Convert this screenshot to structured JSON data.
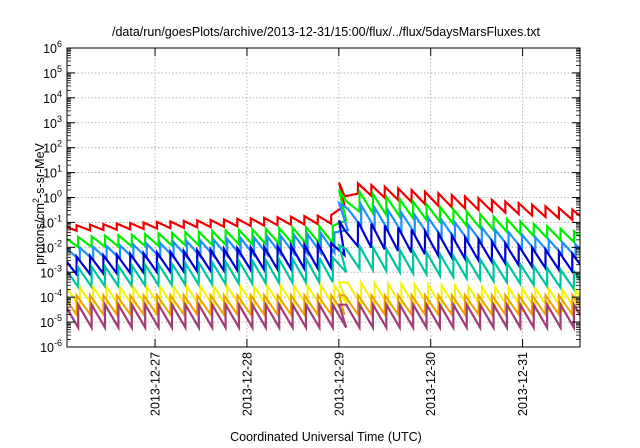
{
  "chart_data": {
    "type": "line",
    "title": "/data/run/goesPlots/archive/2013-12-31/15:00/flux/../flux/5daysMarsFluxes.txt",
    "xlabel": "Coordinated Universal Time (UTC)",
    "ylabel_parts": {
      "base": "protons/cm",
      "sup": "2",
      "rest": "-s-sr-MeV"
    },
    "y_scale": "log",
    "ylim": [
      1e-06,
      1000000.0
    ],
    "y_ticks": [
      {
        "base": "10",
        "exp": "6",
        "value": 1000000.0
      },
      {
        "base": "10",
        "exp": "5",
        "value": 100000.0
      },
      {
        "base": "10",
        "exp": "4",
        "value": 10000.0
      },
      {
        "base": "10",
        "exp": "3",
        "value": 1000.0
      },
      {
        "base": "10",
        "exp": "2",
        "value": 100.0
      },
      {
        "base": "10",
        "exp": "1",
        "value": 10.0
      },
      {
        "base": "10",
        "exp": "0",
        "value": 1.0
      },
      {
        "base": "10",
        "exp": "-1",
        "value": 0.1
      },
      {
        "base": "10",
        "exp": "-2",
        "value": 0.01
      },
      {
        "base": "10",
        "exp": "-3",
        "value": 0.001
      },
      {
        "base": "10",
        "exp": "-4",
        "value": 0.0001
      },
      {
        "base": "10",
        "exp": "-5",
        "value": 1e-05
      },
      {
        "base": "10",
        "exp": "-6",
        "value": 1e-06
      }
    ],
    "xlim": [
      "2013-12-26T01:00",
      "2013-12-31T15:00"
    ],
    "x_ticks": [
      {
        "label": "2013-12-27",
        "value": "2013-12-27T00:00"
      },
      {
        "label": "2013-12-28",
        "value": "2013-12-28T00:00"
      },
      {
        "label": "2013-12-29",
        "value": "2013-12-29T00:00"
      },
      {
        "label": "2013-12-30",
        "value": "2013-12-30T00:00"
      },
      {
        "label": "2013-12-31",
        "value": "2013-12-31T00:00"
      }
    ],
    "grid": true,
    "pattern": {
      "period_hours": 3.5,
      "event_time": "2013-12-29T00:00"
    },
    "series": [
      {
        "color": "#ee0000",
        "width": 2.2,
        "anchors": [
          [
            "2013-12-26T01:00",
            0.075,
            0.045
          ],
          [
            "2013-12-28T23:30",
            0.2,
            0.09
          ],
          [
            "2013-12-29T03:00",
            4.0,
            1.6
          ],
          [
            "2013-12-30T00:00",
            1.6,
            0.5
          ],
          [
            "2013-12-31T15:00",
            0.3,
            0.12
          ]
        ]
      },
      {
        "color": "#00ee00",
        "width": 2.2,
        "anchors": [
          [
            "2013-12-26T01:00",
            0.025,
            0.01
          ],
          [
            "2013-12-28T23:30",
            0.075,
            0.015
          ],
          [
            "2013-12-29T03:00",
            2.0,
            0.3
          ],
          [
            "2013-12-30T00:00",
            0.5,
            0.12
          ],
          [
            "2013-12-31T15:00",
            0.04,
            0.015
          ]
        ]
      },
      {
        "color": "#1e90ff",
        "width": 2.2,
        "anchors": [
          [
            "2013-12-26T01:00",
            0.009,
            0.003
          ],
          [
            "2013-12-28T23:30",
            0.04,
            0.006
          ],
          [
            "2013-12-29T03:00",
            0.6,
            0.08
          ],
          [
            "2013-12-30T00:00",
            0.15,
            0.03
          ],
          [
            "2013-12-31T15:00",
            0.012,
            0.004
          ]
        ]
      },
      {
        "color": "#0000cc",
        "width": 2.2,
        "anchors": [
          [
            "2013-12-26T01:00",
            0.004,
            0.0008
          ],
          [
            "2013-12-28T23:30",
            0.015,
            0.0015
          ],
          [
            "2013-12-29T03:00",
            0.12,
            0.012
          ],
          [
            "2013-12-30T00:00",
            0.04,
            0.005
          ],
          [
            "2013-12-31T15:00",
            0.005,
            0.001
          ]
        ]
      },
      {
        "color": "#00c4a0",
        "width": 2.2,
        "anchors": [
          [
            "2013-12-26T01:00",
            0.0015,
            0.00025
          ],
          [
            "2013-12-28T23:30",
            0.004,
            0.0004
          ],
          [
            "2013-12-29T03:00",
            0.012,
            0.0015
          ],
          [
            "2013-12-30T00:00",
            0.006,
            0.0008
          ],
          [
            "2013-12-31T15:00",
            0.001,
            0.0002
          ]
        ]
      },
      {
        "color": "#f4f400",
        "width": 2.0,
        "anchors": [
          [
            "2013-12-26T01:00",
            0.00025,
            4e-05
          ],
          [
            "2013-12-28T23:30",
            0.0003,
            4e-05
          ],
          [
            "2013-12-29T03:00",
            0.0004,
            5e-05
          ],
          [
            "2013-12-31T15:00",
            0.0002,
            3e-05
          ]
        ]
      },
      {
        "color": "#f0a000",
        "width": 2.0,
        "anchors": [
          [
            "2013-12-26T01:00",
            0.00012,
            2e-05
          ],
          [
            "2013-12-31T15:00",
            0.00012,
            2e-05
          ]
        ]
      },
      {
        "color": "#a03c78",
        "width": 2.2,
        "anchors": [
          [
            "2013-12-26T01:00",
            5e-05,
            6e-06
          ],
          [
            "2013-12-31T15:00",
            5e-05,
            6e-06
          ]
        ]
      }
    ]
  }
}
